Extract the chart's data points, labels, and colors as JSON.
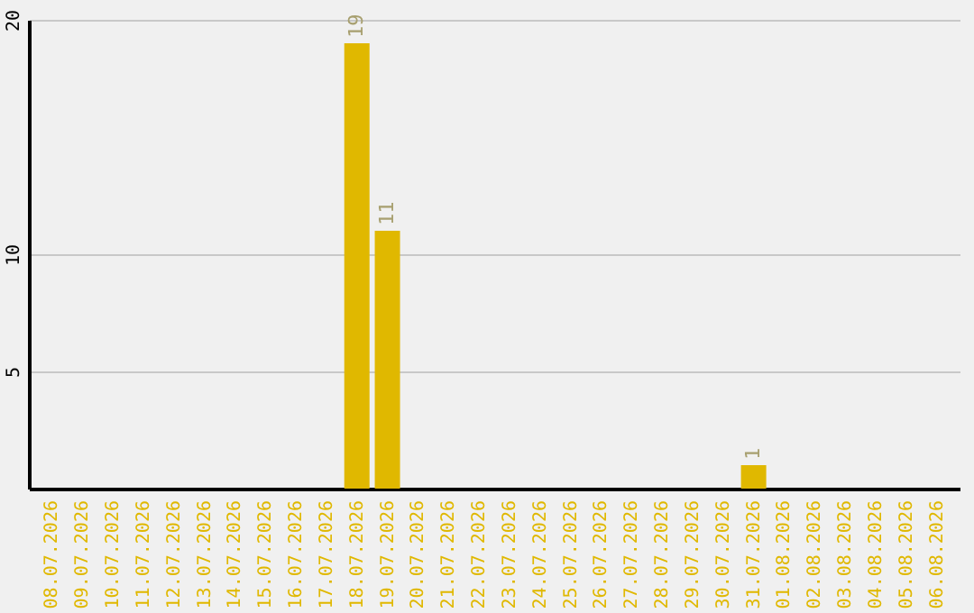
{
  "chart_data": {
    "type": "bar",
    "categories": [
      "08.07.2026",
      "09.07.2026",
      "10.07.2026",
      "11.07.2026",
      "12.07.2026",
      "13.07.2026",
      "14.07.2026",
      "15.07.2026",
      "16.07.2026",
      "17.07.2026",
      "18.07.2026",
      "19.07.2026",
      "20.07.2026",
      "21.07.2026",
      "22.07.2026",
      "23.07.2026",
      "24.07.2026",
      "25.07.2026",
      "26.07.2026",
      "27.07.2026",
      "28.07.2026",
      "29.07.2026",
      "30.07.2026",
      "31.07.2026",
      "01.08.2026",
      "02.08.2026",
      "03.08.2026",
      "04.08.2026",
      "05.08.2026",
      "06.08.2026"
    ],
    "values": [
      0,
      0,
      0,
      0,
      0,
      0,
      0,
      0,
      0,
      0,
      19,
      11,
      0,
      0,
      0,
      0,
      0,
      0,
      0,
      0,
      0,
      0,
      0,
      1,
      0,
      0,
      0,
      0,
      0,
      0
    ],
    "value_labels": [
      null,
      null,
      null,
      null,
      null,
      null,
      null,
      null,
      null,
      null,
      "19",
      "11",
      null,
      null,
      null,
      null,
      null,
      null,
      null,
      null,
      null,
      null,
      null,
      "1",
      null,
      null,
      null,
      null,
      null,
      null
    ],
    "color": "#e0b800",
    "ylim": [
      0,
      20
    ],
    "yticks": [
      5,
      10,
      20
    ],
    "grid": "y"
  }
}
